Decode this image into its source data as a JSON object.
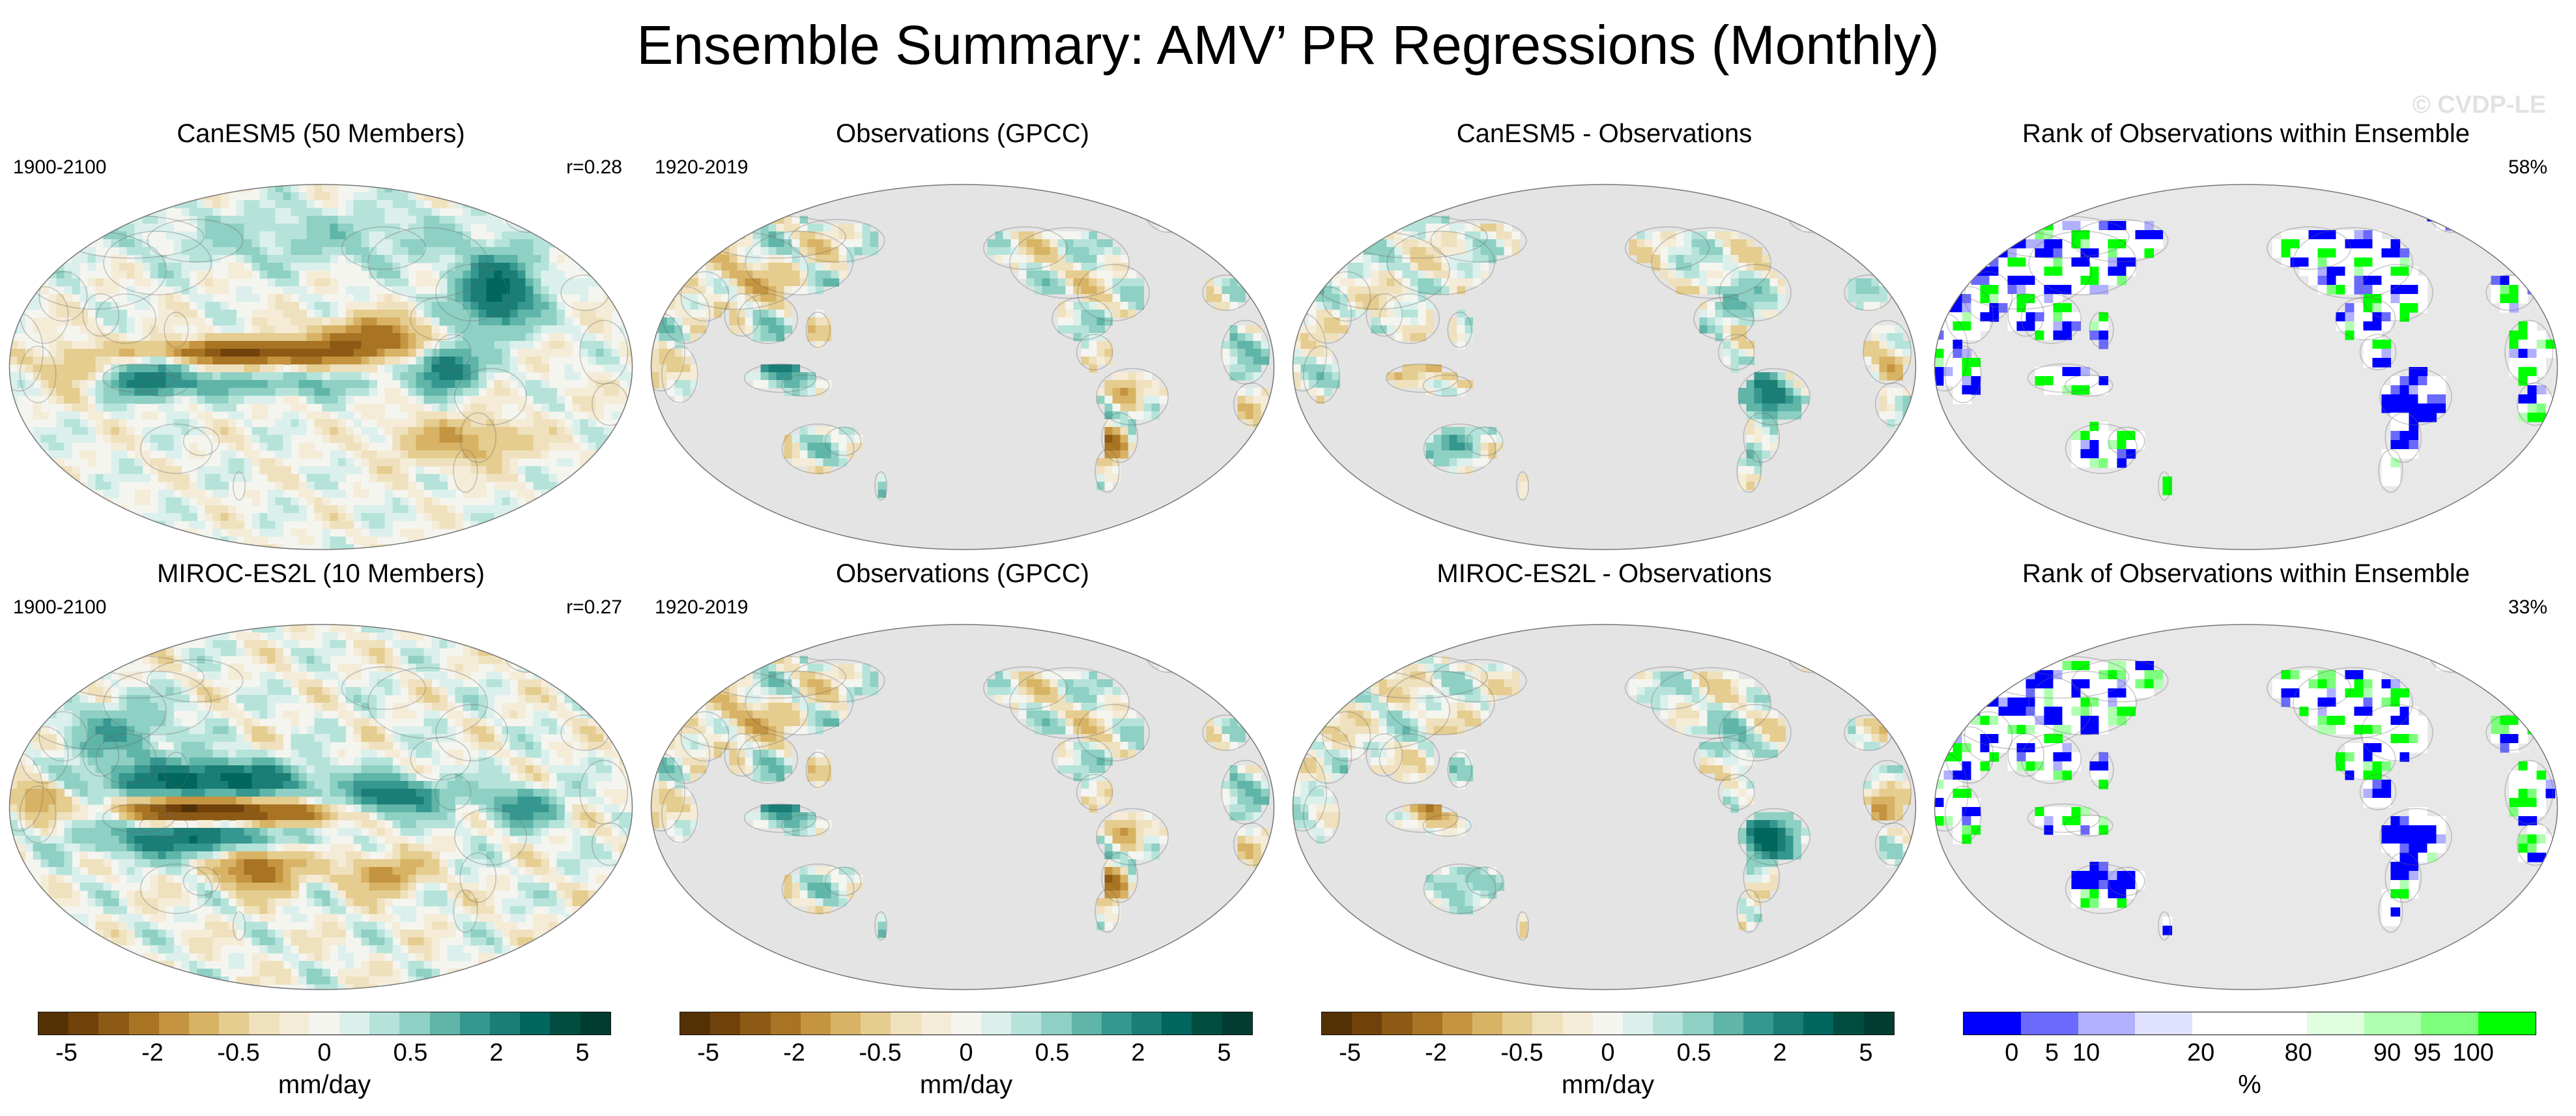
{
  "title": "Ensemble Summary: AMV’ PR Regressions (Monthly)",
  "watermark": "© CVDP-LE",
  "palettes": {
    "brbg": [
      "#543005",
      "#70410b",
      "#8c5a14",
      "#a87424",
      "#c49440",
      "#d8b365",
      "#e5cc8f",
      "#efe1bd",
      "#f5ecd8",
      "#f5f5f0",
      "#dbf0ec",
      "#b5e3da",
      "#8ed0c3",
      "#5fb5a8",
      "#35978f",
      "#1a7e76",
      "#01665e",
      "#004d40",
      "#003c30"
    ],
    "rank": [
      "#0000ff",
      "#6a6aff",
      "#b0b0ff",
      "#e0e0ff",
      "#ffffff",
      "#ffffff",
      "#dfffdf",
      "#b0ffb0",
      "#7dff7d",
      "#00ff00"
    ]
  },
  "colorbars": {
    "diverging": {
      "ticks": [
        "-5",
        "-2",
        "-0.5",
        "0",
        "0.5",
        "2",
        "5"
      ],
      "unit": "mm/day"
    },
    "rank": {
      "ticks": [
        "0",
        "5",
        "10",
        "20",
        "80",
        "90",
        "95",
        "100"
      ],
      "unit": "%"
    }
  },
  "panels": [
    {
      "title": "CanESM5 (50 Members)",
      "left_label": "1900-2100",
      "right_label": "r=0.28",
      "field": "model_canesm"
    },
    {
      "title": "Observations (GPCC)",
      "left_label": "1920-2019",
      "right_label": "",
      "field": "obs"
    },
    {
      "title": "CanESM5 - Observations",
      "left_label": "",
      "right_label": "",
      "field": "diff_canesm"
    },
    {
      "title": "Rank of Observations within Ensemble",
      "left_label": "",
      "right_label": "58%",
      "field": "rank_canesm"
    },
    {
      "title": "MIROC-ES2L (10 Members)",
      "left_label": "1900-2100",
      "right_label": "r=0.27",
      "field": "model_miroc"
    },
    {
      "title": "Observations (GPCC)",
      "left_label": "1920-2019",
      "right_label": "",
      "field": "obs"
    },
    {
      "title": "MIROC-ES2L - Observations",
      "left_label": "",
      "right_label": "",
      "field": "diff_miroc"
    },
    {
      "title": "Rank of Observations within Ensemble",
      "left_label": "",
      "right_label": "33%",
      "field": "rank_miroc"
    }
  ]
}
